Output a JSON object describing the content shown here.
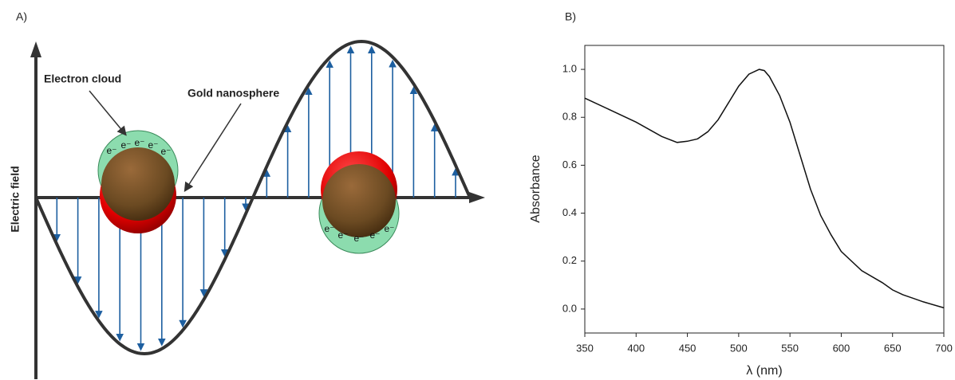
{
  "panel_a": {
    "label": "A)",
    "electron_cloud": "Electron cloud",
    "gold_nanosphere": "Gold nanosphere",
    "axis_label": "Electric field",
    "left_electrons": [
      "e⁻",
      "e⁻",
      "e⁻",
      "e⁻",
      "e⁻"
    ],
    "right_electrons": [
      "e⁻",
      "e⁻",
      "e⁻",
      "e⁻",
      "e⁻"
    ]
  },
  "chart_data": {
    "type": "line",
    "panel_label": "B)",
    "x_label": "λ (nm)",
    "y_label": "Absorbance",
    "x": [
      350,
      375,
      400,
      425,
      440,
      450,
      460,
      470,
      480,
      490,
      500,
      510,
      520,
      525,
      530,
      540,
      550,
      560,
      570,
      580,
      590,
      600,
      620,
      640,
      650,
      660,
      680,
      700
    ],
    "series": [
      {
        "color": "#111111",
        "values": [
          0.88,
          0.83,
          0.78,
          0.72,
          0.695,
          0.7,
          0.71,
          0.74,
          0.79,
          0.86,
          0.93,
          0.98,
          1.0,
          0.995,
          0.97,
          0.89,
          0.78,
          0.64,
          0.5,
          0.39,
          0.31,
          0.24,
          0.16,
          0.11,
          0.08,
          0.06,
          0.03,
          0.005
        ]
      }
    ],
    "xlim": [
      350,
      700
    ],
    "ylim": [
      -0.1,
      1.1
    ],
    "xticks": [
      350,
      400,
      450,
      500,
      550,
      600,
      650,
      700
    ],
    "yticks": [
      {
        "value": 0,
        "label": "0.0"
      },
      0.2,
      0.4,
      0.6,
      0.8,
      {
        "value": 1,
        "label": "1.0"
      }
    ]
  }
}
